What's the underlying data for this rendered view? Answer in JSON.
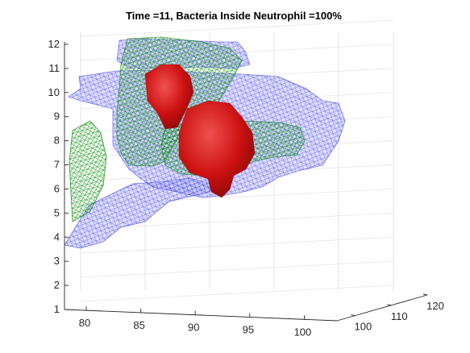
{
  "chart_data": {
    "type": "3d-isosurface",
    "title": "Time =11, Bacteria Inside Neutrophil  =100%",
    "xlabel": "",
    "ylabel": "",
    "zlabel": "",
    "x_ticks": [
      "80",
      "85",
      "90",
      "95",
      "100"
    ],
    "y_ticks": [
      "100",
      "110",
      "120"
    ],
    "z_ticks": [
      "1",
      "2",
      "3",
      "4",
      "5",
      "6",
      "7",
      "8",
      "9",
      "10",
      "11",
      "12"
    ],
    "xlim": [
      78,
      103
    ],
    "ylim": [
      95,
      120
    ],
    "zlim": [
      1,
      12
    ],
    "grid": true,
    "series": [
      {
        "role": "cell membrane (blue mesh)",
        "color": "#1a1aff"
      },
      {
        "role": "nucleus (green mesh)",
        "color": "#008000"
      },
      {
        "role": "bacteria (red surface)",
        "color": "#cc1111"
      }
    ]
  }
}
